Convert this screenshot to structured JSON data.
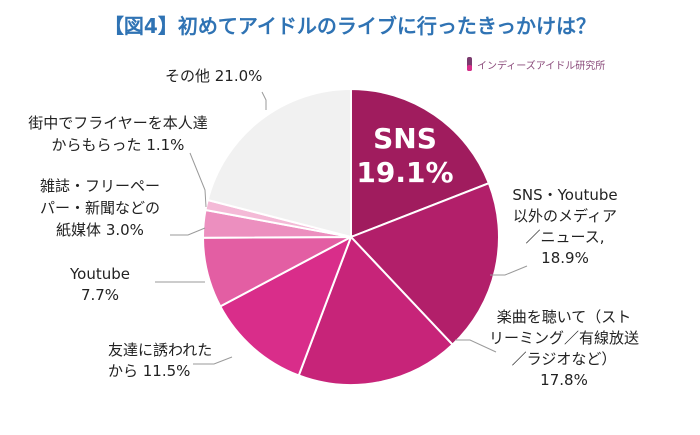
{
  "brand": {
    "label": "インディーズアイドル研究所",
    "icon": "test-tube-icon"
  },
  "chart_data": {
    "type": "pie",
    "title": "【図4】初めてアイドルのライブに行ったきっかけは？",
    "unit": "%",
    "start": "12 o'clock",
    "direction": "clockwise",
    "slices": [
      {
        "label_lines": [
          "SNS"
        ],
        "value": 19.1,
        "color": "#a01c5e"
      },
      {
        "label_lines": [
          "SNS・Youtube",
          "以外のメディア",
          "／ニュース,"
        ],
        "value": 18.9,
        "color": "#b21f6a"
      },
      {
        "label_lines": [
          "楽曲を聴いて（スト",
          "リーミング／有線放送",
          "／ラジオなど）"
        ],
        "value": 17.8,
        "color": "#c72479"
      },
      {
        "label_lines": [
          "友達に誘われた",
          "から"
        ],
        "value": 11.5,
        "color": "#d92d8a"
      },
      {
        "label_lines": [
          "Youtube"
        ],
        "value": 7.7,
        "color": "#e35ea3"
      },
      {
        "label_lines": [
          "雑誌・フリーペー",
          "パー・新聞などの",
          "紙媒体"
        ],
        "value": 3.0,
        "color": "#ec8fbf"
      },
      {
        "label_lines": [
          "街中でフライヤーを本人達",
          "からもらった"
        ],
        "value": 1.1,
        "color": "#f4bad7"
      },
      {
        "label_lines": [
          "その他"
        ],
        "value": 21.0,
        "color": "#f1f1f1"
      }
    ]
  }
}
